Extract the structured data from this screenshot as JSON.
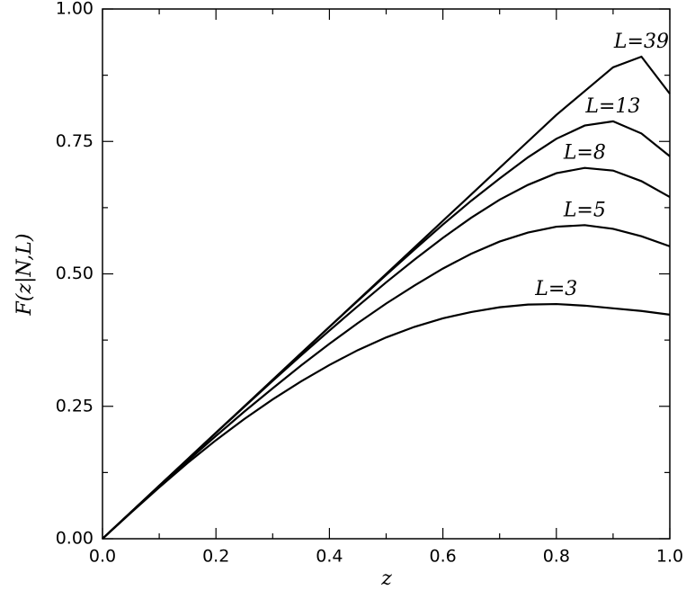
{
  "chart_data": {
    "type": "line",
    "x_label": "z",
    "y_label": "F(z|N,L)",
    "x": [
      0,
      0.05,
      0.1,
      0.15,
      0.2,
      0.25,
      0.3,
      0.35,
      0.4,
      0.45,
      0.5,
      0.55,
      0.6,
      0.65,
      0.7,
      0.75,
      0.8,
      0.85,
      0.9,
      0.95,
      1.0
    ],
    "series": [
      {
        "name": "L=39",
        "color": "#000000",
        "values": [
          0,
          0.05,
          0.1,
          0.15,
          0.2,
          0.25,
          0.3,
          0.35,
          0.4,
          0.45,
          0.5,
          0.55,
          0.6,
          0.65,
          0.7,
          0.75,
          0.8,
          0.845,
          0.89,
          0.91,
          0.84
        ]
      },
      {
        "name": "L=13",
        "color": "#000000",
        "values": [
          0,
          0.05,
          0.1,
          0.15,
          0.2,
          0.25,
          0.3,
          0.35,
          0.4,
          0.449,
          0.498,
          0.546,
          0.593,
          0.638,
          0.68,
          0.72,
          0.755,
          0.78,
          0.788,
          0.765,
          0.722
        ]
      },
      {
        "name": "L=8",
        "color": "#000000",
        "values": [
          0,
          0.05,
          0.1,
          0.15,
          0.2,
          0.249,
          0.298,
          0.346,
          0.393,
          0.439,
          0.484,
          0.527,
          0.568,
          0.606,
          0.64,
          0.668,
          0.69,
          0.7,
          0.695,
          0.675,
          0.645
        ]
      },
      {
        "name": "L=5",
        "color": "#000000",
        "values": [
          0,
          0.05,
          0.099,
          0.147,
          0.194,
          0.24,
          0.284,
          0.327,
          0.368,
          0.407,
          0.444,
          0.478,
          0.51,
          0.538,
          0.561,
          0.578,
          0.589,
          0.592,
          0.585,
          0.571,
          0.552
        ]
      },
      {
        "name": "L=3",
        "color": "#000000",
        "values": [
          0,
          0.049,
          0.097,
          0.143,
          0.186,
          0.226,
          0.263,
          0.297,
          0.328,
          0.356,
          0.38,
          0.4,
          0.416,
          0.428,
          0.437,
          0.442,
          0.443,
          0.44,
          0.435,
          0.43,
          0.423
        ]
      }
    ],
    "xlim": [
      0,
      1.0
    ],
    "ylim": [
      0,
      1.0
    ],
    "xticks": [
      {
        "value": 0,
        "label": "0.0"
      },
      0.2,
      0.4,
      0.6,
      0.8,
      {
        "value": 1.0,
        "label": "1.0"
      }
    ],
    "yticks": [
      {
        "value": 0,
        "label": "0.00"
      },
      0.25,
      {
        "value": 0.5,
        "label": "0.50"
      },
      0.75,
      {
        "value": 1.0,
        "label": "1.00"
      }
    ],
    "xminorticks": [
      0.1,
      0.3,
      0.5,
      0.7,
      0.9
    ],
    "yminorticks": [
      0.125,
      0.375,
      0.625,
      0.875
    ],
    "grid": false
  }
}
